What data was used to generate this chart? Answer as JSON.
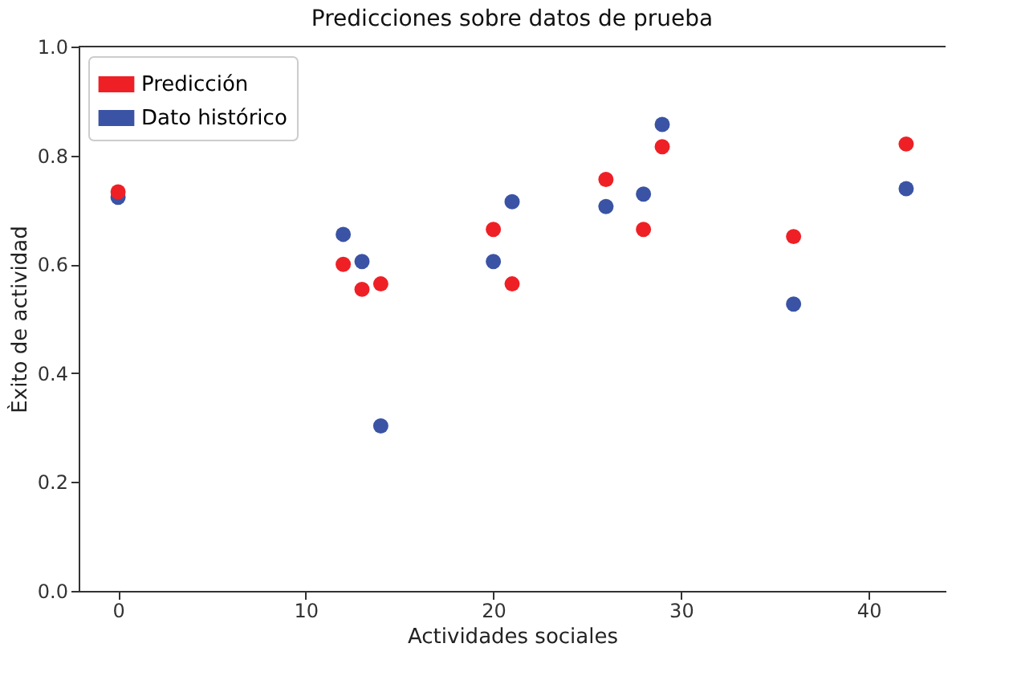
{
  "chart_data": {
    "type": "scatter",
    "title": "Predicciones sobre datos de prueba",
    "xlabel": "Actividades sociales",
    "ylabel": "Èxito de actividad",
    "x": [
      0,
      12,
      13,
      14,
      20,
      21,
      26,
      28,
      29,
      36,
      42
    ],
    "series": [
      {
        "name": "Predicción",
        "color": "#ee2026",
        "values": [
          0.733,
          0.6,
          0.554,
          0.564,
          0.664,
          0.564,
          0.756,
          0.664,
          0.816,
          0.651,
          0.821
        ]
      },
      {
        "name": "Dato histórico",
        "color": "#3a53a4",
        "values": [
          0.723,
          0.655,
          0.605,
          0.303,
          0.605,
          0.715,
          0.706,
          0.729,
          0.857,
          0.527,
          0.739
        ]
      }
    ],
    "xlim": [
      -2.1,
      44.1
    ],
    "ylim": [
      0,
      1
    ],
    "xticks": [
      0,
      10,
      20,
      30,
      40
    ],
    "yticks": [
      {
        "value": 0,
        "label": "0.0"
      },
      0.2,
      0.4,
      0.6,
      0.8,
      {
        "value": 1,
        "label": "1.0"
      }
    ],
    "marker": "circle",
    "legend": "top left",
    "grid": false
  }
}
